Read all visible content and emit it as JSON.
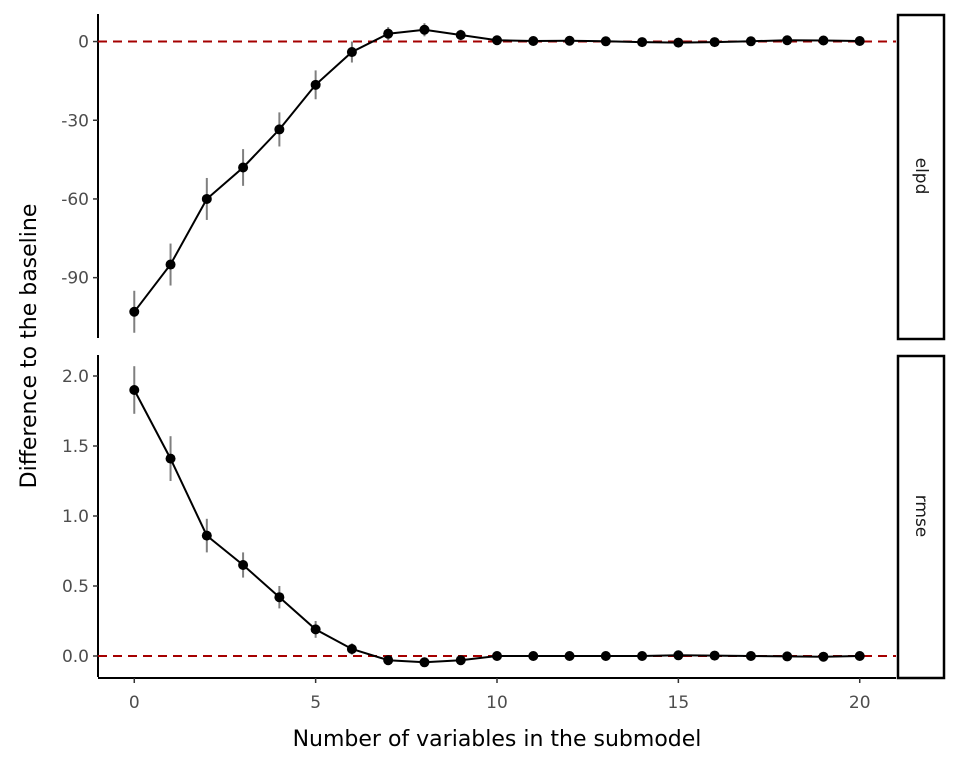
{
  "chart_data": {
    "type": "line",
    "xlabel": "Number of variables in the submodel",
    "ylabel": "Difference to the baseline",
    "x": [
      0,
      1,
      2,
      3,
      4,
      5,
      6,
      7,
      8,
      9,
      10,
      11,
      12,
      13,
      14,
      15,
      16,
      17,
      18,
      19,
      20
    ],
    "xlim": [
      -1,
      21
    ],
    "xticks": [
      0,
      5,
      10,
      15,
      20
    ],
    "reference_line": {
      "y": 0,
      "style": "dashed",
      "color": "#a50000"
    },
    "colors": {
      "line": "#000000",
      "point": "#000000",
      "errorbar": "#7f7f7f",
      "reference": "#a50000"
    },
    "grid": false,
    "legend": "none",
    "panels": [
      {
        "label": "elpd",
        "ylim": [
          -113,
          10.5
        ],
        "yticks": [
          0,
          -30,
          -60,
          -90
        ],
        "values": [
          -103,
          -85,
          -60,
          -48,
          -33.5,
          -16.5,
          -4,
          3,
          4.5,
          2.5,
          0.5,
          0.2,
          0.3,
          0.1,
          -0.2,
          -0.4,
          -0.2,
          0.1,
          0.5,
          0.4,
          0.2
        ],
        "lower": [
          -111,
          -93,
          -68,
          -55,
          -40,
          -22,
          -8,
          0.5,
          2,
          0.5,
          -0.5,
          -0.8,
          -0.7,
          -0.9,
          -1.2,
          -1.4,
          -1.2,
          -0.9,
          -0.5,
          -0.6,
          -0.8
        ],
        "upper": [
          -95,
          -77,
          -52,
          -41,
          -27,
          -11,
          0,
          5.5,
          7,
          4.5,
          1.5,
          1.2,
          1.3,
          1.1,
          0.8,
          0.6,
          0.8,
          1.1,
          1.5,
          1.4,
          1.2
        ]
      },
      {
        "label": "rmse",
        "ylim": [
          -0.15,
          2.15
        ],
        "yticks": [
          0.0,
          0.5,
          1.0,
          1.5,
          2.0
        ],
        "values": [
          1.9,
          1.41,
          0.86,
          0.65,
          0.42,
          0.19,
          0.05,
          -0.03,
          -0.045,
          -0.03,
          0,
          0,
          0,
          0,
          0,
          0.005,
          0.003,
          0,
          -0.003,
          -0.005,
          0
        ],
        "lower": [
          1.73,
          1.25,
          0.74,
          0.56,
          0.34,
          0.13,
          0.01,
          -0.05,
          -0.065,
          -0.05,
          -0.01,
          -0.01,
          -0.01,
          -0.01,
          -0.01,
          -0.005,
          -0.007,
          -0.01,
          -0.013,
          -0.015,
          -0.01
        ],
        "upper": [
          2.07,
          1.57,
          0.98,
          0.74,
          0.5,
          0.25,
          0.09,
          -0.01,
          -0.025,
          -0.01,
          0.01,
          0.01,
          0.01,
          0.01,
          0.01,
          0.015,
          0.013,
          0.01,
          0.007,
          0.005,
          0.01
        ]
      }
    ]
  }
}
